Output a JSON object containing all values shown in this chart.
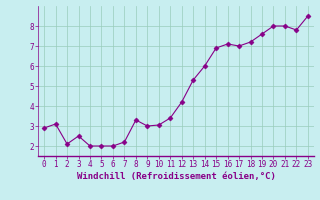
{
  "x": [
    0,
    1,
    2,
    3,
    4,
    5,
    6,
    7,
    8,
    9,
    10,
    11,
    12,
    13,
    14,
    15,
    16,
    17,
    18,
    19,
    20,
    21,
    22,
    23
  ],
  "y": [
    2.9,
    3.1,
    2.1,
    2.5,
    2.0,
    2.0,
    2.0,
    2.2,
    3.3,
    3.0,
    3.05,
    3.4,
    4.2,
    5.3,
    6.0,
    6.9,
    7.1,
    7.0,
    7.2,
    7.6,
    8.0,
    8.0,
    7.8,
    8.5
  ],
  "xlim": [
    -0.5,
    23.5
  ],
  "ylim": [
    1.5,
    9.0
  ],
  "yticks": [
    2,
    3,
    4,
    5,
    6,
    7,
    8
  ],
  "xticks": [
    0,
    1,
    2,
    3,
    4,
    5,
    6,
    7,
    8,
    9,
    10,
    11,
    12,
    13,
    14,
    15,
    16,
    17,
    18,
    19,
    20,
    21,
    22,
    23
  ],
  "xlabel": "Windchill (Refroidissement éolien,°C)",
  "line_color": "#880088",
  "marker": "D",
  "marker_size": 2.5,
  "bg_color": "#c8eef0",
  "grid_color": "#99ccbb",
  "tick_fontsize": 5.5,
  "xlabel_fontsize": 6.5
}
